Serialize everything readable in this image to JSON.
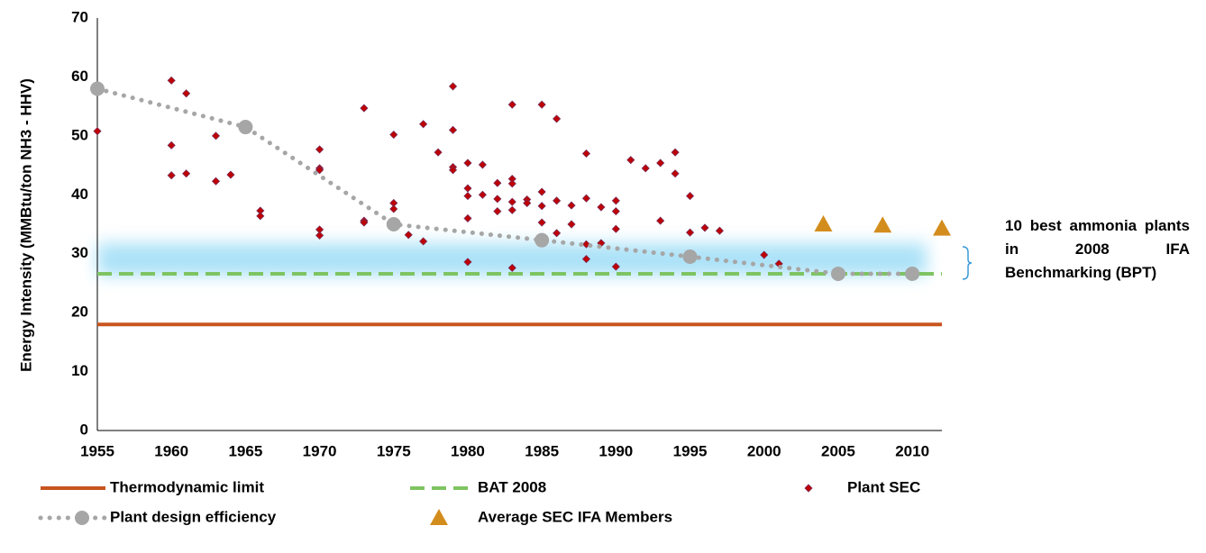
{
  "chart_data": {
    "type": "scatter",
    "y_label": "Energy Intensity (MMBtu/ton NH3 - HHV)",
    "annotation": "10 best ammonia plants in 2008 IFA Benchmarking (BPT)",
    "xlim": [
      1955,
      2012
    ],
    "xticks": [
      1955,
      1960,
      1965,
      1970,
      1975,
      1980,
      1985,
      1990,
      1995,
      2000,
      2005,
      2010
    ],
    "ylim": [
      0,
      70
    ],
    "yticks": [
      0,
      10,
      20,
      30,
      40,
      50,
      60,
      70
    ],
    "grid": false,
    "series": [
      {
        "name": "Thermodynamic limit",
        "kind": "line",
        "dash": "solid",
        "color": "#c8541e",
        "x": [
          1955,
          2012
        ],
        "values": [
          18,
          18
        ]
      },
      {
        "name": "BAT 2008",
        "kind": "line",
        "dash": "dashed",
        "color": "#7ec462",
        "x": [
          1955,
          2012
        ],
        "values": [
          26.6,
          26.6
        ]
      },
      {
        "name": "Plant SEC",
        "kind": "scatter",
        "marker": "diamond",
        "color": "#c00000",
        "x": [
          1955,
          1960,
          1960,
          1960,
          1961,
          1961,
          1963,
          1963,
          1964,
          1966,
          1966,
          1970,
          1970,
          1970,
          1970,
          1970,
          1973,
          1973,
          1973,
          1975,
          1975,
          1975,
          1976,
          1977,
          1977,
          1978,
          1979,
          1979,
          1979,
          1979,
          1980,
          1980,
          1980,
          1980,
          1980,
          1981,
          1981,
          1982,
          1982,
          1982,
          1983,
          1983,
          1983,
          1983,
          1983,
          1983,
          1984,
          1984,
          1985,
          1985,
          1985,
          1985,
          1986,
          1986,
          1986,
          1987,
          1987,
          1988,
          1988,
          1988,
          1988,
          1989,
          1989,
          1990,
          1990,
          1990,
          1990,
          1991,
          1992,
          1993,
          1993,
          1994,
          1994,
          1995,
          1995,
          1995,
          1996,
          1997,
          2000,
          2001
        ],
        "values": [
          50.8,
          59.4,
          48.4,
          43.3,
          57.2,
          43.6,
          50.0,
          42.3,
          43.4,
          37.3,
          36.4,
          47.7,
          44.5,
          44.2,
          34.1,
          33.1,
          54.7,
          35.6,
          35.3,
          50.2,
          38.6,
          37.6,
          33.2,
          32.1,
          52.0,
          47.2,
          58.4,
          51.0,
          44.7,
          44.2,
          45.4,
          41.1,
          39.8,
          36.0,
          28.6,
          45.1,
          40.0,
          42.0,
          39.3,
          37.2,
          55.3,
          42.7,
          41.9,
          38.8,
          37.4,
          27.6,
          39.2,
          38.6,
          55.3,
          40.5,
          38.1,
          35.3,
          52.9,
          39.0,
          33.5,
          38.2,
          35.0,
          47.0,
          39.4,
          31.6,
          29.1,
          37.9,
          31.8,
          39.0,
          37.2,
          34.2,
          27.8,
          45.9,
          44.5,
          45.4,
          35.6,
          47.2,
          43.6,
          39.8,
          33.6,
          30.0,
          34.4,
          33.9,
          29.8,
          28.3
        ]
      },
      {
        "name": "Plant design efficiency",
        "kind": "line",
        "dash": "dotted",
        "marker": "circle",
        "color": "#a6a6a6",
        "x": [
          1955,
          1965,
          1975,
          1985,
          1995,
          2005,
          2010
        ],
        "values": [
          58,
          51.5,
          35,
          32.3,
          29.5,
          26.6,
          26.6
        ]
      },
      {
        "name": "Average SEC IFA Members",
        "kind": "scatter",
        "marker": "triangle",
        "color": "#d38d1d",
        "x": [
          2004,
          2008,
          2012
        ],
        "values": [
          35,
          34.8,
          34.3
        ]
      }
    ]
  }
}
